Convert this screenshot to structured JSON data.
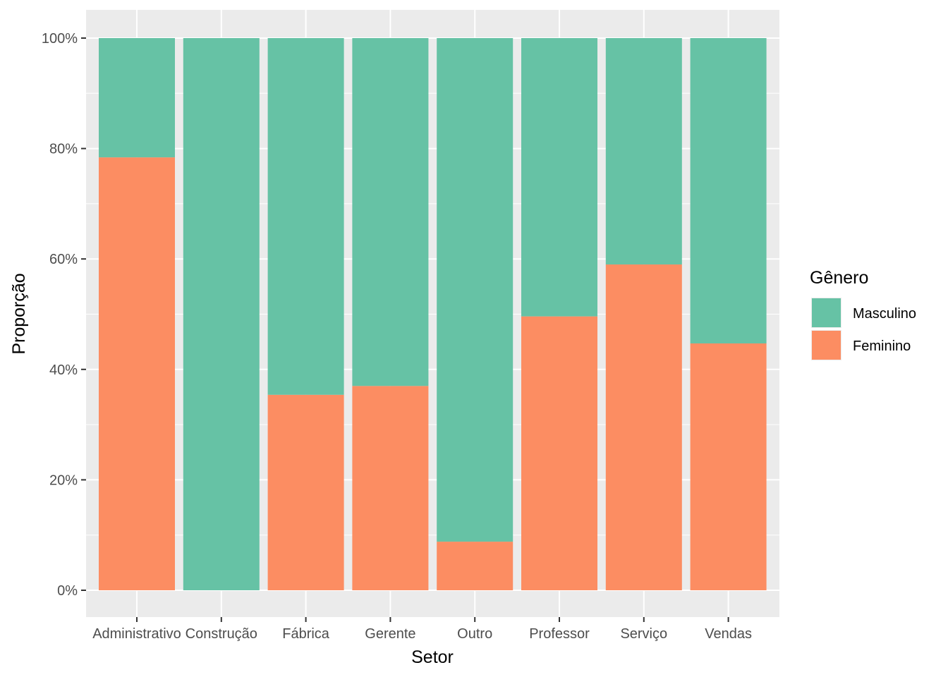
{
  "chart_data": {
    "type": "bar",
    "stacked": true,
    "percent_scale": true,
    "xlabel": "Setor",
    "ylabel": "Proporção",
    "categories": [
      "Administrativo",
      "Construção",
      "Fábrica",
      "Gerente",
      "Outro",
      "Professor",
      "Serviço",
      "Vendas"
    ],
    "ylim": [
      0,
      1
    ],
    "yticks": [
      0,
      0.2,
      0.4,
      0.6,
      0.8,
      1.0
    ],
    "ytick_labels": [
      "0%",
      "20%",
      "40%",
      "60%",
      "80%",
      "100%"
    ],
    "grid": true,
    "legend": {
      "title": "Gênero",
      "position": "right",
      "entries": [
        "Masculino",
        "Feminino"
      ]
    },
    "series": [
      {
        "name": "Feminino",
        "color": "#fc8d62",
        "values": [
          0.784,
          0.0,
          0.354,
          0.37,
          0.088,
          0.496,
          0.59,
          0.447
        ]
      },
      {
        "name": "Masculino",
        "color": "#66c2a5",
        "values": [
          0.216,
          1.0,
          0.646,
          0.63,
          0.912,
          0.504,
          0.41,
          0.553
        ]
      }
    ]
  }
}
